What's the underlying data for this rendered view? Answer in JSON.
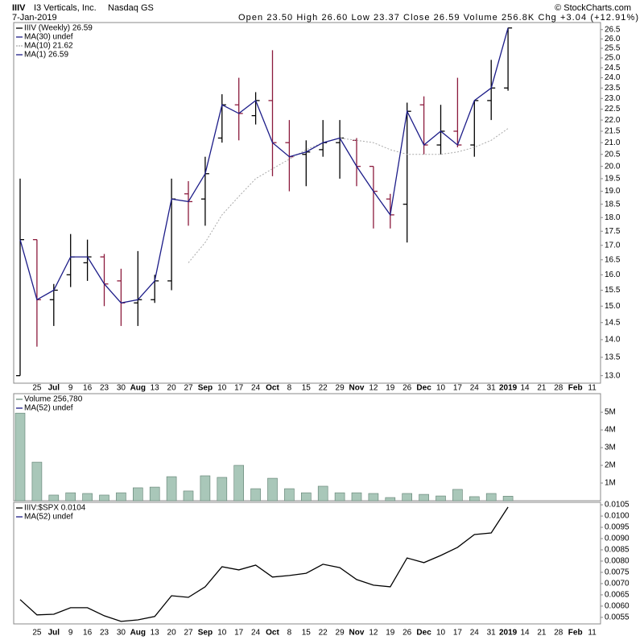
{
  "header": {
    "symbol": "IIIV",
    "name": "I3 Verticals, Inc.",
    "exchange": "Nasdaq GS",
    "date": "7-Jan-2019",
    "copyright": "© StockCharts.com",
    "quote": "Open 23.50  High 26.60  Low 23.37  Close 26.59  Volume 256.8K  Chg +3.04 (+12.91%)"
  },
  "chart_data": [
    {
      "type": "ohlc",
      "log_scale": true,
      "ylim": [
        12.8,
        26.8
      ],
      "yticks": [
        {
          "value": 13,
          "label": "13.0"
        },
        13.5,
        {
          "value": 14,
          "label": "14.0"
        },
        14.5,
        {
          "value": 15,
          "label": "15.0"
        },
        15.5,
        {
          "value": 16,
          "label": "16.0"
        },
        16.5,
        {
          "value": 17,
          "label": "17.0"
        },
        17.5,
        {
          "value": 18,
          "label": "18.0"
        },
        18.5,
        {
          "value": 19,
          "label": "19.0"
        },
        19.5,
        {
          "value": 20,
          "label": "20.0"
        },
        20.5,
        {
          "value": 21,
          "label": "21.0"
        },
        21.5,
        {
          "value": 22,
          "label": "22.0"
        },
        22.5,
        {
          "value": 23,
          "label": "23.0"
        },
        23.5,
        {
          "value": 24,
          "label": "24.0"
        },
        24.5,
        {
          "value": 25,
          "label": "25.0"
        },
        25.5,
        {
          "value": 26,
          "label": "26.0"
        },
        26.5
      ],
      "legend": [
        {
          "name": "IIIV (Weekly) 26.59",
          "color": "#000000"
        },
        {
          "name": "MA(30) undef",
          "color": "#1c1c88"
        },
        {
          "name": "MA(10) 21.62",
          "color": "#aaaaaa",
          "dash": true
        },
        {
          "name": "MA(1) 26.59",
          "color": "#1c1c88"
        }
      ],
      "categories": [
        null,
        "25",
        "Jul",
        "9",
        "16",
        "23",
        "30",
        "Aug",
        "13",
        "20",
        "27",
        "Sep",
        "10",
        "17",
        "24",
        "Oct",
        "8",
        "15",
        "22",
        "29",
        "Nov",
        "12",
        "19",
        "26",
        "Dec",
        "10",
        "17",
        "24",
        "31",
        "2019",
        "14",
        "21",
        "28",
        "Feb",
        "11"
      ],
      "open": [
        13.0,
        17.2,
        15.2,
        16.0,
        16.4,
        16.6,
        15.8,
        15.1,
        15.2,
        15.8,
        18.9,
        18.7,
        21.2,
        22.7,
        22.2,
        22.9,
        21.0,
        20.5,
        20.7,
        21.0,
        21.1,
        20.0,
        18.7,
        18.5,
        22.7,
        20.9,
        21.5,
        20.9,
        22.9,
        23.5,
        null,
        null,
        null,
        null,
        null
      ],
      "high": [
        19.5,
        17.2,
        15.7,
        17.4,
        17.2,
        16.7,
        16.2,
        16.8,
        16.0,
        19.5,
        19.4,
        20.4,
        23.2,
        24.0,
        23.3,
        25.4,
        22.0,
        21.1,
        22.0,
        22.0,
        21.2,
        20.0,
        18.9,
        22.8,
        23.1,
        22.7,
        24.0,
        22.9,
        24.9,
        26.6,
        null,
        null,
        null,
        null,
        null
      ],
      "low": [
        13.0,
        13.8,
        14.4,
        15.6,
        15.8,
        15.0,
        14.4,
        14.4,
        15.1,
        15.5,
        17.7,
        17.7,
        21.0,
        21.1,
        21.8,
        19.6,
        19.0,
        19.2,
        20.4,
        19.5,
        19.2,
        17.6,
        17.6,
        17.1,
        20.5,
        20.5,
        20.8,
        20.4,
        22.0,
        23.37,
        null,
        null,
        null,
        null,
        null
      ],
      "close": [
        17.2,
        15.2,
        15.5,
        16.6,
        16.6,
        15.7,
        15.1,
        15.2,
        15.8,
        18.7,
        18.6,
        19.7,
        22.7,
        22.3,
        22.9,
        21.0,
        20.4,
        20.6,
        21.0,
        21.2,
        20.0,
        19.0,
        18.1,
        22.4,
        20.9,
        21.5,
        20.9,
        22.9,
        23.5,
        26.59,
        null,
        null,
        null,
        null,
        null
      ],
      "up_color": "#000000",
      "down_color": "#8b1a3c",
      "close_line_color": "#1c1c88",
      "series": [
        {
          "color": "#aaaaaa",
          "dash": true,
          "values": [
            null,
            null,
            null,
            null,
            null,
            null,
            null,
            null,
            null,
            null,
            16.4,
            17.1,
            18.1,
            18.8,
            19.5,
            19.9,
            20.3,
            20.7,
            21.0,
            21.2,
            21.1,
            21.0,
            20.7,
            20.5,
            20.5,
            20.5,
            20.6,
            20.8,
            21.1,
            21.62,
            null,
            null,
            null,
            null,
            null
          ]
        }
      ]
    },
    {
      "type": "bar",
      "ylim": [
        0,
        6050000
      ],
      "yticks": [
        {
          "value": 1000000,
          "label": "1M"
        },
        {
          "value": 2000000,
          "label": "2M"
        },
        {
          "value": 3000000,
          "label": "3M"
        },
        {
          "value": 4000000,
          "label": "4M"
        },
        {
          "value": 5000000,
          "label": "5M"
        }
      ],
      "legend": [
        {
          "name": "Volume 256,780",
          "color": "#6f8f80"
        },
        {
          "name": "MA(52) undef",
          "color": "#1c1c88"
        }
      ],
      "color": "#a9c7b9",
      "edge_color": "#5d7d6e",
      "values": [
        4950000,
        2180000,
        320000,
        450000,
        410000,
        320000,
        450000,
        730000,
        770000,
        1360000,
        550000,
        1410000,
        1320000,
        2000000,
        680000,
        1270000,
        680000,
        450000,
        820000,
        450000,
        450000,
        410000,
        180000,
        410000,
        360000,
        270000,
        640000,
        230000,
        410000,
        256780,
        null,
        null,
        null,
        null,
        null
      ]
    },
    {
      "type": "line",
      "ylim": [
        0.00521,
        0.01061
      ],
      "yticks": [
        0.0055,
        {
          "value": 0.006,
          "label": "0.0060"
        },
        0.0065,
        {
          "value": 0.007,
          "label": "0.0070"
        },
        0.0075,
        {
          "value": 0.008,
          "label": "0.0080"
        },
        0.0085,
        {
          "value": 0.009,
          "label": "0.0090"
        },
        0.0095,
        {
          "value": 0.01,
          "label": "0.0100"
        },
        0.0105
      ],
      "legend": [
        {
          "name": "IIIV:$SPX 0.0104",
          "color": "#000000"
        },
        {
          "name": "MA(52) undef",
          "color": "#1c1c88"
        }
      ],
      "color": "#000000",
      "categories": [
        null,
        "25",
        "Jul",
        "9",
        "16",
        "23",
        "30",
        "Aug",
        "13",
        "20",
        "27",
        "Sep",
        "10",
        "17",
        "24",
        "Oct",
        "8",
        "15",
        "22",
        "29",
        "Nov",
        "12",
        "19",
        "26",
        "Dec",
        "10",
        "17",
        "24",
        "31",
        "2019",
        "14",
        "21",
        "28",
        "Feb",
        "11"
      ],
      "values": [
        0.00629,
        0.00561,
        0.00564,
        0.00593,
        0.00593,
        0.00557,
        0.00532,
        0.00539,
        0.00554,
        0.00646,
        0.00639,
        0.00686,
        0.00775,
        0.00761,
        0.00782,
        0.00729,
        0.00736,
        0.00746,
        0.00786,
        0.00771,
        0.00718,
        0.00693,
        0.00686,
        0.00814,
        0.00793,
        0.00825,
        0.00861,
        0.00918,
        0.00925,
        0.0104,
        null,
        null,
        null,
        null,
        null
      ]
    }
  ]
}
